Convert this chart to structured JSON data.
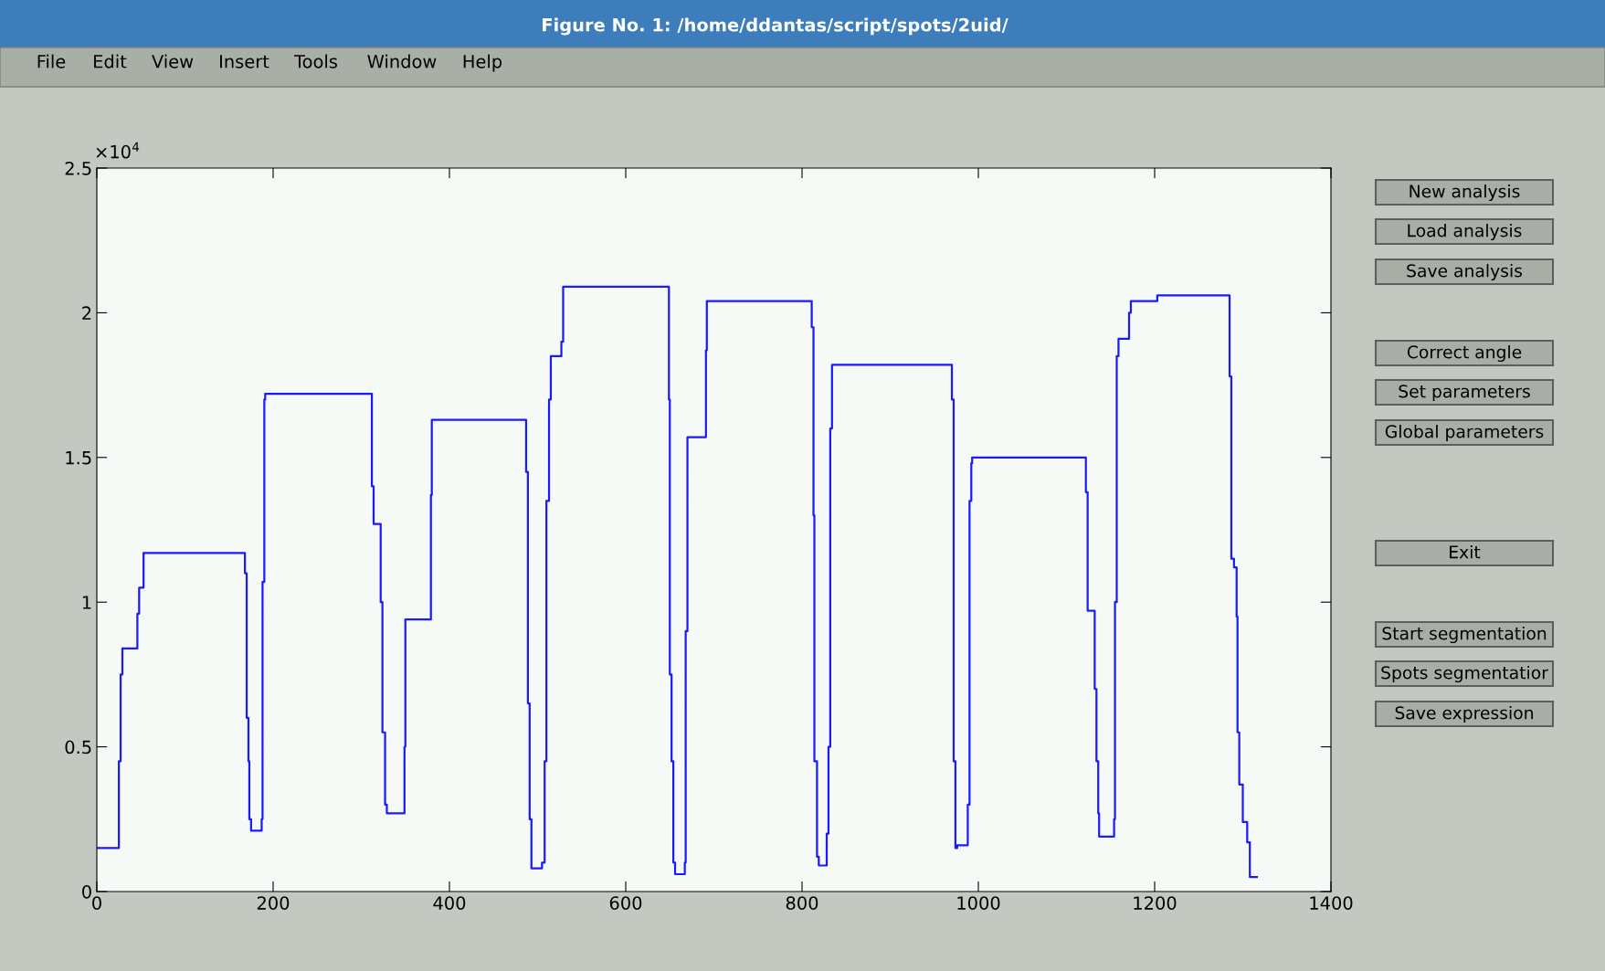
{
  "chart_data": {
    "type": "step",
    "title": "Figure No. 1: /home/ddantas/script/spots/2uid/",
    "x": [
      0,
      25,
      27,
      29,
      46,
      48,
      53,
      168,
      170,
      172,
      173,
      175,
      187,
      188,
      190,
      191,
      312,
      314,
      322,
      324,
      327,
      329,
      349,
      350,
      379,
      380,
      487,
      489,
      491,
      493,
      505,
      508,
      510,
      513,
      515,
      527,
      529,
      649,
      650,
      652,
      654,
      656,
      667,
      668,
      670,
      691,
      692,
      811,
      813,
      814,
      817,
      819,
      828,
      830,
      832,
      834,
      970,
      972,
      974,
      976,
      988,
      990,
      992,
      993,
      1122,
      1124,
      1132,
      1134,
      1136,
      1137,
      1154,
      1155,
      1157,
      1159,
      1171,
      1173,
      1203,
      1285,
      1287,
      1290,
      1293,
      1294,
      1296,
      1300,
      1305,
      1308,
      1316
    ],
    "series": [
      {
        "color": "#1a1aff",
        "values": [
          0.15,
          0.45,
          0.75,
          0.84,
          0.96,
          1.05,
          1.17,
          1.1,
          0.6,
          0.45,
          0.25,
          0.21,
          0.25,
          1.07,
          1.7,
          1.72,
          1.4,
          1.27,
          1.0,
          0.55,
          0.3,
          0.27,
          0.5,
          0.94,
          1.37,
          1.63,
          1.45,
          0.65,
          0.25,
          0.08,
          0.1,
          0.45,
          1.35,
          1.7,
          1.85,
          1.9,
          2.09,
          1.7,
          0.75,
          0.45,
          0.1,
          0.06,
          0.1,
          0.9,
          1.57,
          1.87,
          2.04,
          1.95,
          1.3,
          0.45,
          0.12,
          0.09,
          0.2,
          0.5,
          1.6,
          1.82,
          1.7,
          0.45,
          0.15,
          0.16,
          0.3,
          1.35,
          1.48,
          1.5,
          1.38,
          0.97,
          0.7,
          0.45,
          0.27,
          0.19,
          0.25,
          1.0,
          1.85,
          1.91,
          2.0,
          2.04,
          2.06,
          1.78,
          1.15,
          1.12,
          0.95,
          0.55,
          0.37,
          0.24,
          0.17,
          0.05,
          0.05
        ]
      }
    ],
    "xlim": [
      0,
      1400
    ],
    "xticks": [
      0,
      200,
      400,
      600,
      800,
      1000,
      1200,
      1400
    ],
    "ylim": [
      0,
      2.5
    ],
    "yticks": [
      0,
      0.5,
      1,
      1.5,
      2,
      2.5
    ],
    "grid": false,
    "marker": "none",
    "line_style": "solid",
    "annotations": [
      "×10$^{4}$",
      "File",
      "Edit",
      "View",
      "Insert",
      "Tools",
      "Window",
      "Help",
      "New analysis",
      "Load analysis",
      "Save analysis",
      "Correct angle",
      "Set parameters",
      "Global parameters",
      "Exit",
      "Start segmentation",
      "Spots segmentatior",
      "Save expression"
    ]
  }
}
